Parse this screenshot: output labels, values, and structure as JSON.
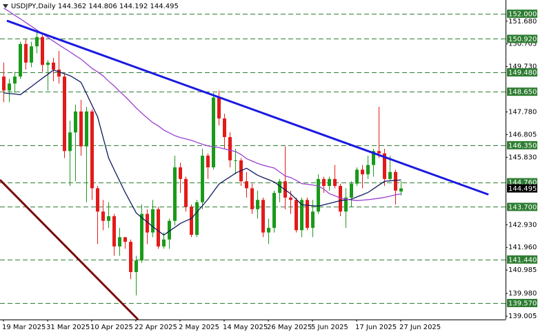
{
  "chart_data": {
    "type": "candlestick",
    "title": "USDJPY,Daily 144.362 144.806 144.192 144.495",
    "categories": [
      "19 Mar 2025",
      null,
      null,
      null,
      null,
      null,
      null,
      null,
      "31 Mar 2025",
      null,
      null,
      null,
      null,
      null,
      null,
      null,
      "10 Apr 2025",
      null,
      null,
      null,
      null,
      null,
      null,
      null,
      "22 Apr 2025",
      null,
      null,
      null,
      null,
      null,
      null,
      null,
      "2 May 2025",
      null,
      null,
      null,
      null,
      null,
      null,
      null,
      "14 May 2025",
      null,
      null,
      null,
      null,
      null,
      null,
      null,
      "26 May 2025",
      null,
      null,
      null,
      null,
      null,
      null,
      null,
      "5 Jun 2025",
      null,
      null,
      null,
      null,
      null,
      null,
      null,
      "17 Jun 2025",
      null,
      null,
      null,
      null,
      null,
      null,
      null,
      "27 Jun 2025"
    ],
    "open": [
      149.3,
      148.7,
      149.0,
      149.3,
      150.7,
      149.9,
      150.6,
      151.0,
      149.8,
      149.9,
      149.6,
      149.3,
      146.1,
      146.9,
      147.8,
      146.3,
      147.8,
      144.5,
      143.5,
      143.1,
      143.3,
      142.0,
      142.4,
      142.2,
      140.9,
      141.4,
      143.4,
      142.6,
      143.6,
      142.0,
      142.3,
      143.1,
      145.4,
      144.9,
      143.7,
      142.5,
      143.9,
      145.9,
      145.4,
      148.4,
      147.5,
      146.7,
      145.7,
      145.7,
      144.8,
      144.5,
      143.6,
      144.0,
      142.6,
      142.8,
      144.3,
      144.8,
      144.1,
      144.0,
      142.7,
      144.0,
      142.8,
      143.5,
      144.9,
      144.6,
      144.9,
      144.6,
      143.5,
      144.1,
      144.7,
      145.3,
      145.1,
      145.5,
      146.1,
      146.0,
      144.9,
      145.2,
      144.362
    ],
    "high": [
      149.9,
      149.2,
      149.5,
      150.8,
      150.9,
      150.8,
      151.2,
      151.1,
      150.0,
      150.1,
      150.4,
      149.4,
      147.4,
      148.1,
      148.3,
      148.0,
      147.9,
      144.6,
      144.0,
      143.9,
      143.4,
      142.8,
      142.4,
      142.3,
      141.6,
      143.8,
      143.6,
      144.0,
      143.7,
      142.6,
      143.2,
      145.9,
      145.6,
      145.0,
      143.8,
      144.0,
      146.2,
      146.0,
      148.6,
      148.7,
      147.7,
      146.9,
      146.2,
      145.8,
      145.2,
      144.7,
      144.4,
      144.1,
      143.2,
      144.4,
      144.9,
      146.3,
      144.4,
      144.1,
      144.1,
      144.1,
      144.0,
      145.1,
      145.0,
      145.0,
      145.5,
      144.7,
      144.5,
      144.8,
      145.4,
      145.5,
      145.9,
      146.2,
      148.0,
      146.2,
      145.9,
      145.3,
      144.806
    ],
    "low": [
      148.2,
      148.2,
      148.6,
      149.2,
      149.6,
      149.7,
      150.3,
      149.5,
      148.7,
      149.1,
      149.0,
      145.8,
      144.6,
      144.8,
      145.9,
      143.9,
      144.0,
      142.1,
      142.7,
      142.8,
      141.6,
      141.6,
      141.9,
      140.6,
      139.9,
      141.3,
      142.1,
      142.4,
      141.9,
      141.9,
      141.9,
      142.9,
      144.3,
      143.5,
      142.4,
      142.4,
      143.6,
      144.9,
      145.3,
      147.2,
      146.2,
      145.4,
      145.1,
      144.6,
      144.1,
      143.4,
      143.2,
      142.4,
      142.1,
      142.6,
      143.9,
      143.6,
      143.4,
      142.6,
      142.4,
      142.7,
      142.4,
      143.4,
      144.3,
      144.4,
      144.5,
      143.3,
      142.8,
      143.7,
      144.6,
      144.5,
      144.9,
      145.0,
      145.8,
      144.6,
      144.8,
      143.8,
      144.192
    ],
    "close": [
      148.7,
      149.0,
      149.3,
      150.7,
      149.9,
      150.6,
      151.0,
      149.8,
      149.9,
      149.6,
      149.3,
      146.1,
      146.9,
      147.8,
      146.3,
      147.8,
      144.5,
      143.5,
      143.1,
      143.3,
      142.0,
      142.4,
      142.2,
      140.9,
      141.4,
      143.4,
      142.6,
      143.6,
      142.0,
      142.3,
      143.1,
      145.4,
      144.9,
      143.7,
      142.5,
      143.9,
      145.9,
      145.4,
      148.4,
      147.5,
      146.7,
      145.7,
      145.7,
      144.8,
      144.5,
      143.6,
      144.0,
      142.6,
      142.8,
      144.3,
      144.8,
      144.1,
      144.0,
      142.7,
      144.0,
      142.8,
      143.5,
      144.9,
      144.6,
      144.9,
      144.6,
      143.5,
      144.1,
      144.7,
      145.3,
      145.1,
      145.5,
      146.1,
      146.0,
      144.9,
      145.2,
      144.4,
      144.495
    ],
    "up_color": "#1a9a1a",
    "down_color": "#e41a1a",
    "overlays": [
      {
        "color": "#0d1b5e",
        "values": [
          148.6,
          148.57,
          148.55,
          148.52,
          148.7,
          148.87,
          149.05,
          149.23,
          149.4,
          149.58,
          149.5,
          149.42,
          149.34,
          149.2,
          149.05,
          148.56,
          148.06,
          147.57,
          146.68,
          145.8,
          145.3,
          144.81,
          144.32,
          143.88,
          143.44,
          143.24,
          143.05,
          142.85,
          142.67,
          142.49,
          142.66,
          142.82,
          142.99,
          143.1,
          143.2,
          143.48,
          143.75,
          144.03,
          144.36,
          144.68,
          144.84,
          144.99,
          145.15,
          145.26,
          145.36,
          145.21,
          145.06,
          144.96,
          144.87,
          144.77,
          144.6,
          144.43,
          144.26,
          144.03,
          143.79,
          143.77,
          143.75,
          143.73,
          143.79,
          143.85,
          143.91,
          143.97,
          144.0,
          144.03,
          144.13,
          144.22,
          144.32,
          144.48,
          144.64,
          144.8,
          144.82,
          144.84,
          144.86
        ]
      },
      {
        "color": "#9a3fd0",
        "values": [
          152.24,
          152.09,
          151.93,
          151.78,
          151.62,
          151.46,
          151.3,
          151.14,
          150.98,
          150.82,
          150.66,
          150.51,
          150.36,
          150.2,
          150.05,
          149.85,
          149.65,
          149.5,
          149.33,
          149.1,
          148.9,
          148.66,
          148.44,
          148.2,
          147.95,
          147.73,
          147.52,
          147.32,
          147.18,
          147.0,
          146.88,
          146.76,
          146.68,
          146.62,
          146.56,
          146.47,
          146.39,
          146.32,
          146.28,
          146.25,
          146.19,
          146.13,
          146.08,
          145.95,
          145.77,
          145.67,
          145.57,
          145.49,
          145.43,
          145.37,
          145.2,
          145.03,
          144.96,
          144.84,
          144.7,
          144.67,
          144.64,
          144.6,
          144.46,
          144.27,
          144.18,
          144.08,
          144.02,
          144.0,
          143.97,
          143.99,
          144.01,
          144.04,
          144.07,
          144.11,
          144.16,
          144.22,
          144.26
        ]
      }
    ],
    "trendlines": [
      {
        "color": "#1a1ae0",
        "x": [
          0.625,
          87.9
        ],
        "y": [
          151.7,
          144.23
        ]
      },
      {
        "color": "#7a0a0a",
        "x": [
          -0.625,
          24.4
        ],
        "y": [
          144.86,
          138.86
        ]
      }
    ],
    "levels": [
      {
        "value": 152,
        "label": "152.000"
      },
      {
        "value": 150.92,
        "label": "150.920"
      },
      {
        "value": 149.48,
        "label": "149.480"
      },
      {
        "value": 148.65,
        "label": "148.650"
      },
      {
        "value": 146.35,
        "label": "146.350"
      },
      {
        "value": 144.76,
        "label": "144.760"
      },
      {
        "value": 143.7,
        "label": "143.700"
      },
      {
        "value": 141.44,
        "label": "141.440"
      },
      {
        "value": 139.57,
        "label": "139.570"
      }
    ],
    "level_color": "#2e7d32",
    "last_price": 144.495,
    "ylim": [
      138.86,
      152.59
    ],
    "yticks": [
      {
        "value": 151.68,
        "label": "151.680"
      },
      150.705,
      {
        "value": 149.73,
        "label": "149.730"
      },
      {
        "value": 147.78,
        "label": "147.780"
      },
      146.805,
      {
        "value": 145.83,
        "label": "145.830"
      },
      {
        "value": 142.93,
        "label": "142.930"
      },
      {
        "value": 141.96,
        "label": "141.960"
      },
      140.985,
      {
        "value": 139.98,
        "label": "139.980"
      },
      139.005
    ]
  }
}
